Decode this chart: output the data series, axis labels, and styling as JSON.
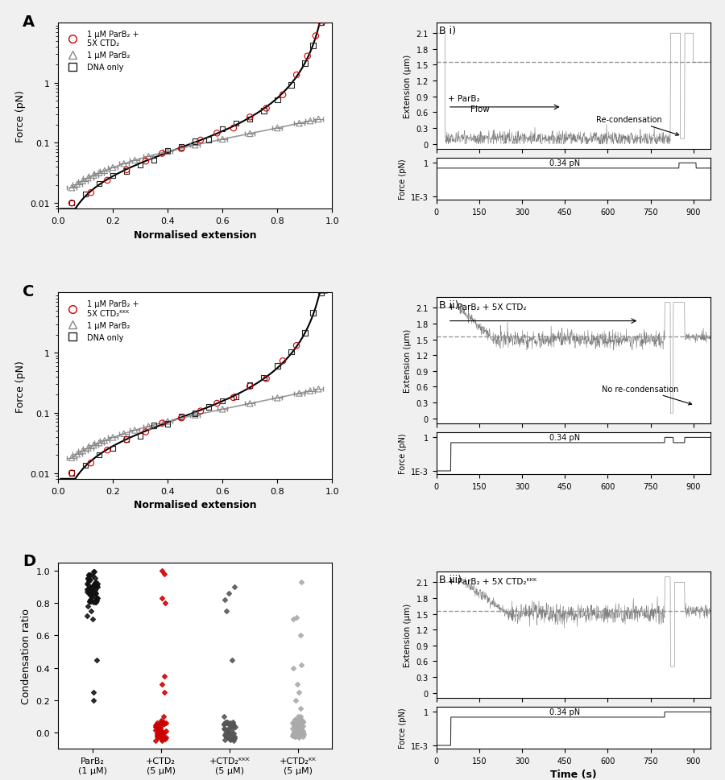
{
  "panel_A_label": "A",
  "panel_C_label": "C",
  "panel_D_label": "D",
  "xlabel_AC": "Normalised extension",
  "ylabel_AC": "Force (pN)",
  "ylabel_D": "Condensation ratio",
  "xticks_D": [
    "ParB₂\n(1 μM)",
    "+CTD₂\n(5 μM)",
    "+CTD₂KKK\n(5 μM)",
    "+CTD₂KK\n(5 μM)"
  ],
  "time_label": "Time (s)",
  "extension_label": "Extension (μm)",
  "force_label_B": "Force (pN)",
  "parB_color": "#999999",
  "ctd_color": "#cc0000",
  "dna_color": "#333333",
  "black": "#000000",
  "dark_gray": "#555555",
  "light_gray": "#aaaaaa"
}
